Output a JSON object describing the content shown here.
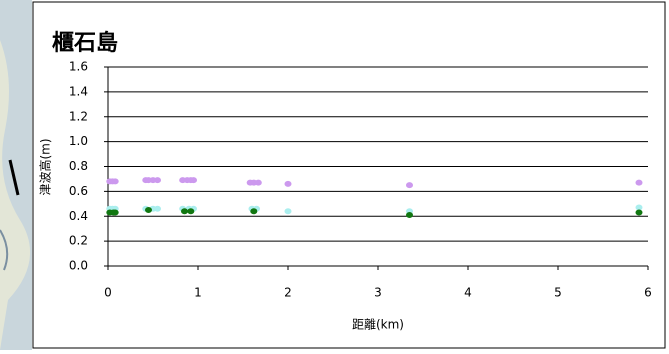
{
  "chart_data": {
    "type": "scatter",
    "title": "櫃石島",
    "xlabel": "距離(km)",
    "ylabel": "津波高(m)",
    "xlim": [
      0,
      6
    ],
    "xticks": [
      0,
      1,
      2,
      3,
      4,
      5,
      6
    ],
    "ylim": [
      0,
      1.6
    ],
    "yticks": [
      {
        "value": 0,
        "label": "0.0"
      },
      0.2,
      0.4,
      0.6,
      0.8,
      {
        "value": 1,
        "label": "1.0"
      },
      1.2,
      1.4,
      1.6
    ],
    "grid": true,
    "series": [
      {
        "color": "#cc99ee",
        "x": [
          0.02,
          0.05,
          0.08,
          0.42,
          0.45,
          0.5,
          0.55,
          0.83,
          0.88,
          0.92,
          0.95,
          1.58,
          1.62,
          1.67,
          2.0,
          3.35,
          5.9
        ],
        "values": [
          0.68,
          0.68,
          0.68,
          0.69,
          0.69,
          0.69,
          0.69,
          0.69,
          0.69,
          0.69,
          0.69,
          0.67,
          0.67,
          0.67,
          0.66,
          0.65,
          0.67
        ]
      },
      {
        "color": "#aaeeee",
        "x": [
          0.02,
          0.05,
          0.08,
          0.42,
          0.5,
          0.55,
          0.83,
          0.9,
          0.95,
          1.6,
          1.65,
          2.0,
          3.35,
          5.9
        ],
        "values": [
          0.46,
          0.46,
          0.46,
          0.46,
          0.46,
          0.46,
          0.46,
          0.46,
          0.46,
          0.46,
          0.46,
          0.44,
          0.44,
          0.47
        ]
      },
      {
        "color": "#117711",
        "x": [
          0.02,
          0.06,
          0.08,
          0.45,
          0.85,
          0.92,
          1.62,
          3.35,
          5.9
        ],
        "values": [
          0.43,
          0.43,
          0.43,
          0.45,
          0.44,
          0.44,
          0.44,
          0.41,
          0.43
        ]
      }
    ]
  }
}
